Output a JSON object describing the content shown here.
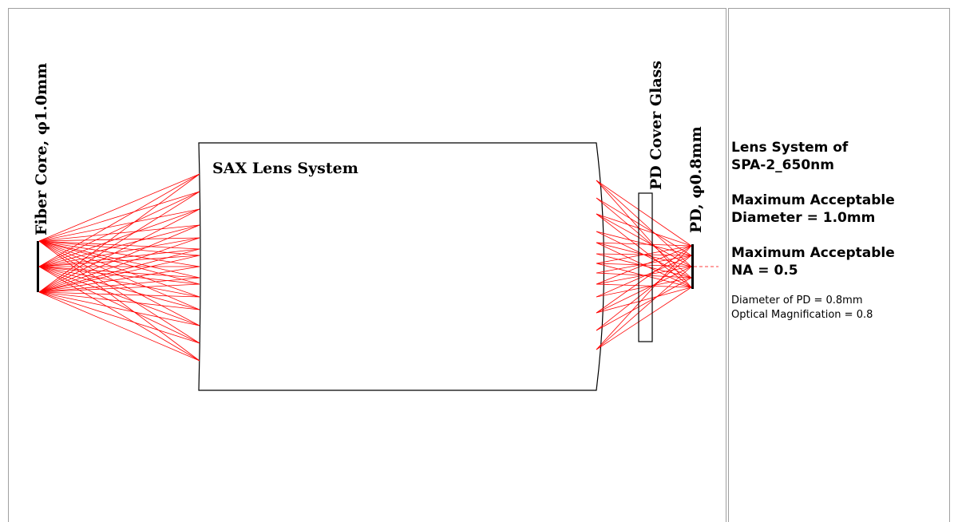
{
  "diagram": {
    "fiber_label": "Fiber Core, φ1.0mm",
    "lens_label": "SAX Lens System",
    "cover_label": "PD Cover Glass",
    "pd_label": "PD, φ0.8mm",
    "ray_color": "#ff0000"
  },
  "info": {
    "line1": "Lens System of",
    "line2": "SPA-2_650nm",
    "line3": "Maximum Acceptable",
    "line4": "Diameter = 1.0mm",
    "line5": "Maximum Acceptable",
    "line6": "NA = 0.5",
    "line7": "Diameter of PD = 0.8mm",
    "line8": "Optical Magnification = 0.8"
  }
}
